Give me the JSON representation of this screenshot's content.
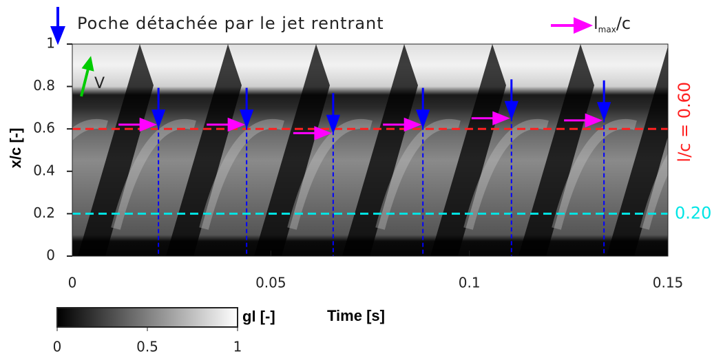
{
  "chart_data": {
    "type": "scatter",
    "xlabel": "Time [s]",
    "ylabel": "x/c [-]",
    "xlim": [
      0,
      0.15
    ],
    "xticks": [
      0,
      0.05,
      0.1,
      0.15
    ],
    "ylim": [
      0,
      1
    ],
    "yticks": [
      0,
      0.2,
      0.4,
      0.6,
      0.8,
      1
    ],
    "x": [
      0.0217,
      0.0439,
      0.0657,
      0.0883,
      0.1106,
      0.1339
    ],
    "series": [
      {
        "name": "Poche détachée par le jet rentrant",
        "color": "#0000ff",
        "values": [
          0.615,
          0.615,
          0.59,
          0.615,
          0.655,
          0.65
        ]
      },
      {
        "name_parts": [
          "l",
          "max",
          "/c"
        ],
        "color": "#ff00ff",
        "values": [
          0.62,
          0.62,
          0.58,
          0.62,
          0.65,
          0.64
        ]
      }
    ],
    "reference_lines": [
      {
        "value": 0.6,
        "label": "l/c = 0.60",
        "color": "#ff2020"
      },
      {
        "value": 0.2,
        "label": "0.20",
        "color": "#00e5e5"
      }
    ],
    "annotation": {
      "text": "V",
      "color": "#00cc00"
    },
    "colorbar": {
      "label": "gl [-]",
      "lim": [
        0,
        1
      ],
      "ticks": [
        0,
        0.5,
        1
      ]
    }
  }
}
